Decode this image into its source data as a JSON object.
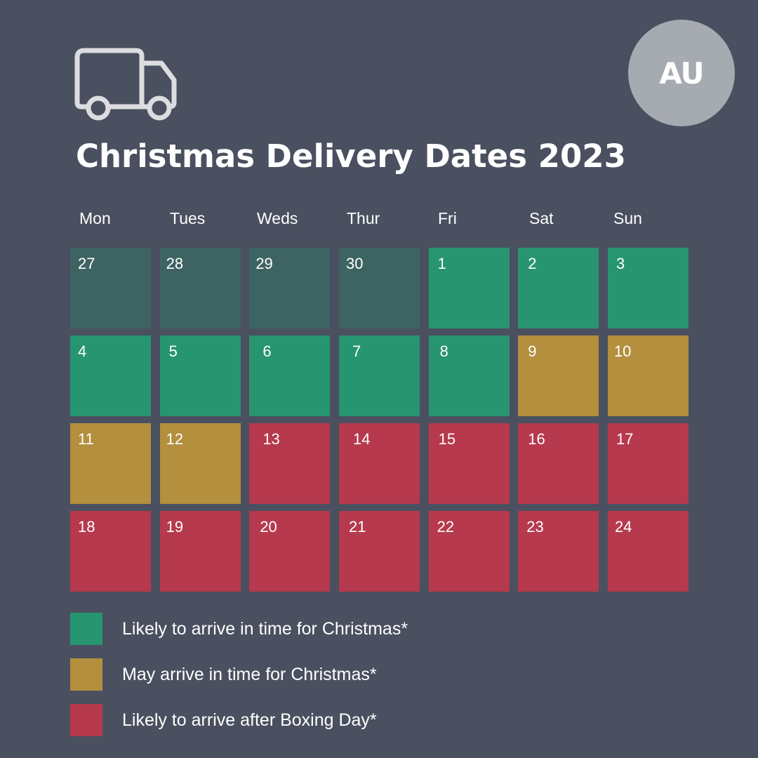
{
  "region": "AU",
  "title": "Christmas Delivery Dates 2023",
  "icon": "truck-icon",
  "weekdays": [
    "Mon",
    "Tues",
    "Weds",
    "Thur",
    "Fri",
    "Sat",
    "Sun"
  ],
  "colors": {
    "background": "#4a505f",
    "badge": "#a6aab1",
    "past": "#3d6462",
    "likely": "#279570",
    "maybe": "#b38f3e",
    "late": "#b6394d"
  },
  "days": [
    {
      "label": "27",
      "status": "past"
    },
    {
      "label": "28",
      "status": "past"
    },
    {
      "label": "29",
      "status": "past"
    },
    {
      "label": "30",
      "status": "past"
    },
    {
      "label": "1",
      "status": "likely"
    },
    {
      "label": "2",
      "status": "likely"
    },
    {
      "label": "3",
      "status": "likely"
    },
    {
      "label": "4",
      "status": "likely"
    },
    {
      "label": "5",
      "status": "likely"
    },
    {
      "label": "6",
      "status": "likely"
    },
    {
      "label": "7",
      "status": "likely"
    },
    {
      "label": "8",
      "status": "likely"
    },
    {
      "label": "9",
      "status": "maybe"
    },
    {
      "label": "10",
      "status": "maybe"
    },
    {
      "label": "11",
      "status": "maybe"
    },
    {
      "label": "12",
      "status": "maybe"
    },
    {
      "label": "13",
      "status": "late"
    },
    {
      "label": "14",
      "status": "late"
    },
    {
      "label": "15",
      "status": "late"
    },
    {
      "label": "16",
      "status": "late"
    },
    {
      "label": "17",
      "status": "late"
    },
    {
      "label": "18",
      "status": "late"
    },
    {
      "label": "19",
      "status": "late"
    },
    {
      "label": "20",
      "status": "late"
    },
    {
      "label": "21",
      "status": "late"
    },
    {
      "label": "22",
      "status": "late"
    },
    {
      "label": "23",
      "status": "late"
    },
    {
      "label": "24",
      "status": "late"
    }
  ],
  "legend": [
    {
      "status": "likely",
      "label": "Likely to arrive in time for Christmas*"
    },
    {
      "status": "maybe",
      "label": "May arrive in time for Christmas*"
    },
    {
      "status": "late",
      "label": "Likely to arrive after Boxing Day*"
    }
  ]
}
